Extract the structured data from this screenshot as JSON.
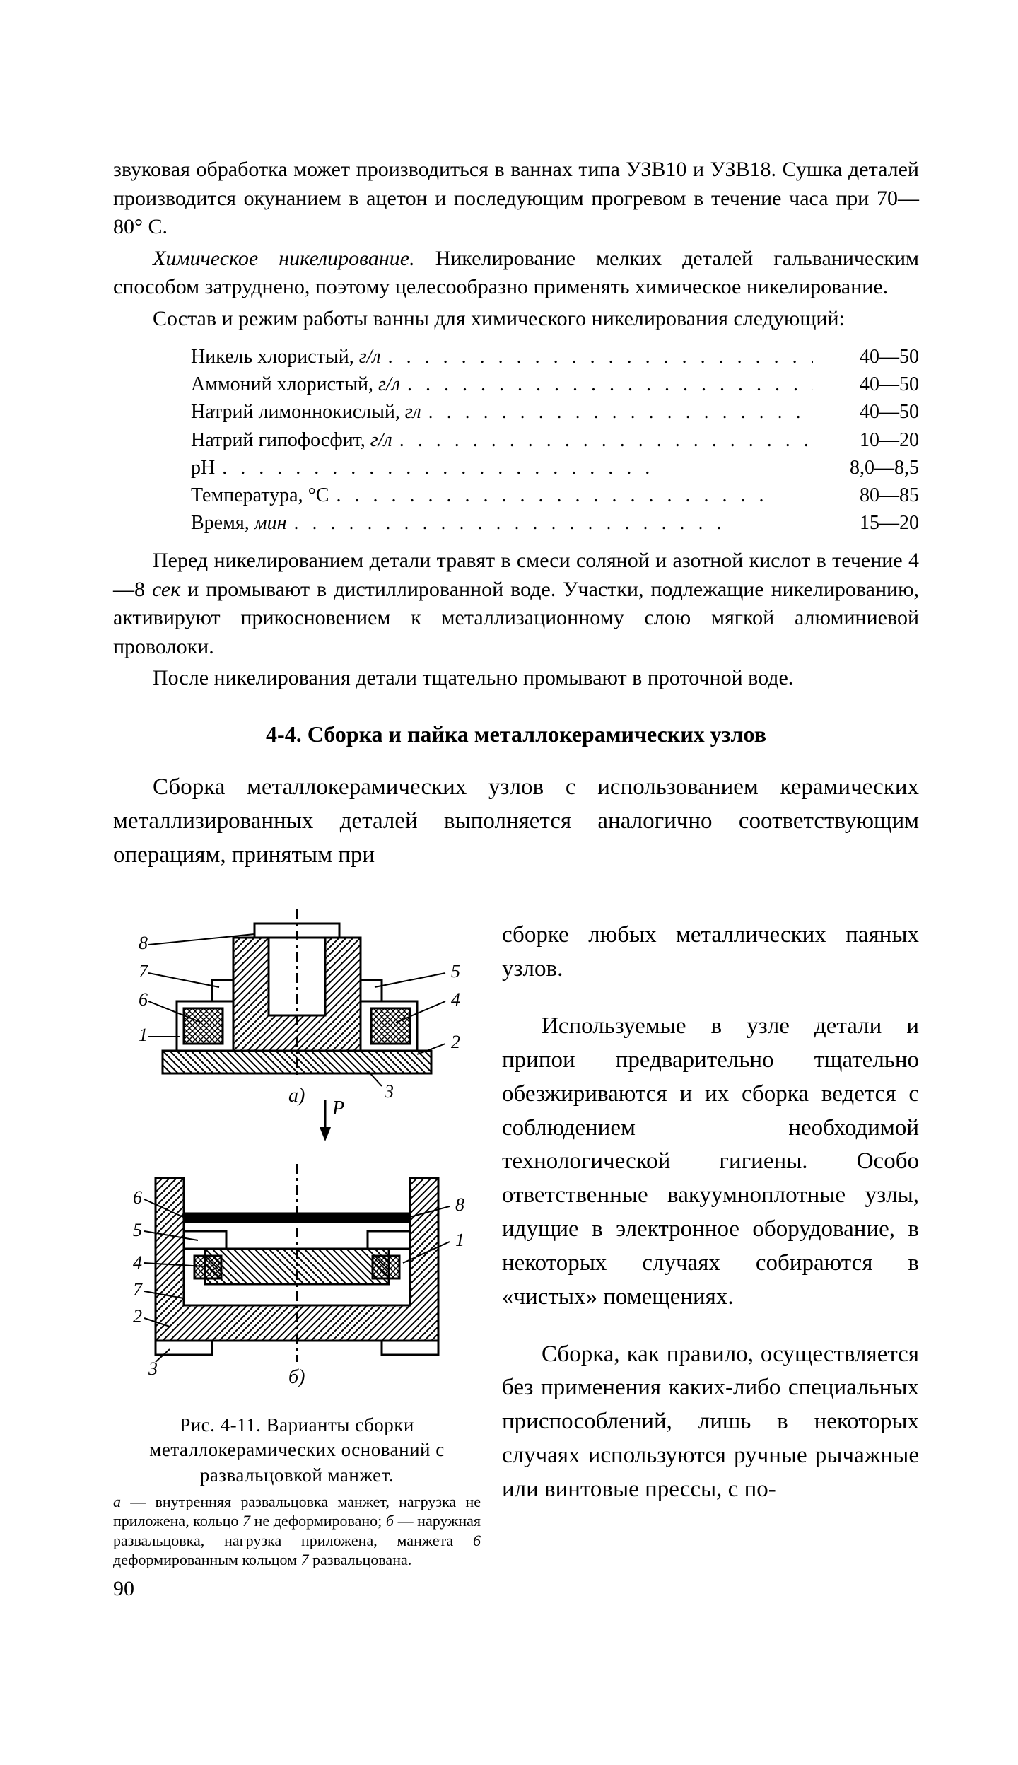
{
  "para1": "звуковая обработка может производиться в ваннах типа УЗВ10 и УЗВ18. Сушка деталей производится окунанием в ацетон и последующим прогревом в течение часа при 70—80° С.",
  "para2_start_italic": "Химическое никелирование.",
  "para2_rest": " Никелирование мелких деталей гальваническим способом затруднено, поэтому целесообразно применять химическое никелирование.",
  "para3": "Состав и режим работы ванны для химического никелирования следующий:",
  "composition": [
    {
      "label": "Никель хлористый, ",
      "unit_italic": "г/л",
      "value": "40—50"
    },
    {
      "label": "Аммоний хлористый, ",
      "unit_italic": "г/л",
      "value": "40—50"
    },
    {
      "label": "Натрий лимоннокислый, ",
      "unit_italic": "гл",
      "value": "40—50"
    },
    {
      "label": "Натрий гипофосфит, ",
      "unit_italic": "г/л",
      "value": "10—20"
    },
    {
      "label": "pH",
      "unit_italic": "",
      "value": "8,0—8,5"
    },
    {
      "label": "Температура, °С",
      "unit_italic": "",
      "value": "80—85"
    },
    {
      "label": "Время, ",
      "unit_italic": "мин",
      "value": "15—20"
    }
  ],
  "dots": ". . . . . . . . . . . . . . . . . . . . . . . .",
  "para4_a": "Перед никелированием детали травят в смеси соляной и азотной кислот в течение 4—8 ",
  "para4_italic": "сек",
  "para4_b": " и промывают в дистиллированной воде. Участки, подлежащие никелированию, активируют прикосновением к металлизационному слою мягкой алюминиевой проволоки.",
  "para5": "После никелирования детали тщательно промывают в проточной воде.",
  "heading": "4-4. Сборка и пайка металлокерамических узлов",
  "largepara1": "Сборка металлокерамических узлов с использованием керамических металлизированных деталей выполняется аналогично соответствующим операциям, принятым при",
  "col_para1": "сборке любых металлических паяных узлов.",
  "col_para2": "Используемые в узле детали и припои предварительно тщательно обезжириваются и их сборка ведется с соблюдением необходимой технологической гигиены. Особо ответственные вакуумноплотные узлы, идущие в электронное оборудование, в некоторых случаях собираются в «чистых» помещениях.",
  "col_para3": "Сборка, как правило, осуществляется без применения каких-либо специальных приспособлений, лишь в некоторых случаях используются ручные рычажные или винтовые прессы, с по-",
  "fig_caption": "Рис. 4-11. Варианты сборки металлокерамических оснований с развальцовкой манжет.",
  "fig_sub_a_italic": "а",
  "fig_sub_a": " — внутренняя развальцовка манжет, нагрузка не приложена, кольцо ",
  "fig_sub_a_num": "7",
  "fig_sub_a2": " не деформировано; ",
  "fig_sub_b_italic": "б",
  "fig_sub_b": " — наружная развальцовка, нагрузка приложена, манжета ",
  "fig_sub_b_num": "6",
  "fig_sub_b2": " деформированным кольцом ",
  "fig_sub_b_num2": "7",
  "fig_sub_b3": " развальцована.",
  "page_number": "90",
  "fig": {
    "labels_a": [
      "8",
      "7",
      "6",
      "1",
      "5",
      "4",
      "2",
      "3"
    ],
    "label_a_center": "а)",
    "arrow_label": "Р",
    "labels_b": [
      "6",
      "5",
      "4",
      "7",
      "2",
      "1",
      "3",
      "8"
    ],
    "label_b_center": "б)",
    "colors": {
      "stroke": "#000000",
      "fill": "#ffffff",
      "hatch": "#000000"
    }
  }
}
